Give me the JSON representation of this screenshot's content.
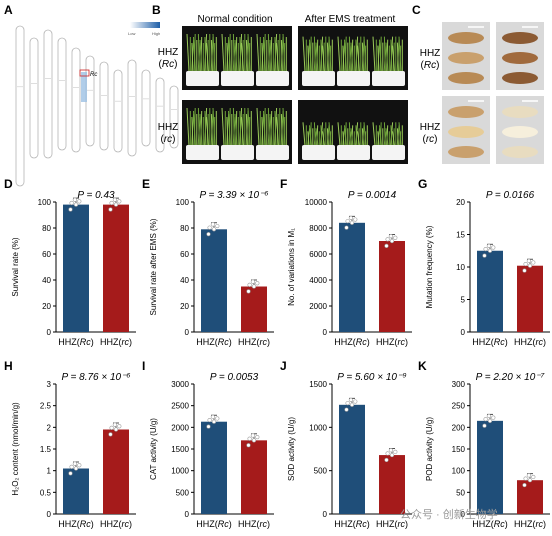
{
  "panels": {
    "A": {
      "letter": "A",
      "legend_low": "Low",
      "legend_high": "High",
      "gene_label": "Rc"
    },
    "B": {
      "letter": "B",
      "col1": "Normal condition",
      "col2": "After EMS treatment",
      "row1_line": "HHZ",
      "row1_geno": "Rc",
      "row2_line": "HHZ",
      "row2_geno": "rc"
    },
    "C": {
      "letter": "C",
      "row1_line": "HHZ",
      "row1_geno": "Rc",
      "row2_line": "HHZ",
      "row2_geno": "rc"
    }
  },
  "watermark": "公众号 · 创新生物学",
  "colors": {
    "rc_upper": "#1f4e79",
    "rc_lower": "#a51b1b"
  },
  "chart_data": [
    {
      "id": "D",
      "letter": "D",
      "type": "bar",
      "categories": [
        "HHZ(Rc)",
        "HHZ(rc)"
      ],
      "values": [
        98,
        98
      ],
      "ylabel": "Survival rate (%)",
      "ylim": [
        0,
        100
      ],
      "yticks": [
        0,
        20,
        40,
        60,
        80,
        100
      ],
      "pvalue": "P = 0.43"
    },
    {
      "id": "E",
      "letter": "E",
      "type": "bar",
      "categories": [
        "HHZ(Rc)",
        "HHZ(rc)"
      ],
      "values": [
        79,
        35
      ],
      "ylabel": "Survival rate after EMS (%)",
      "ylim": [
        0,
        100
      ],
      "yticks": [
        0,
        20,
        40,
        60,
        80,
        100
      ],
      "pvalue": "P = 3.39 × 10⁻⁶"
    },
    {
      "id": "F",
      "letter": "F",
      "type": "bar",
      "categories": [
        "HHZ(Rc)",
        "HHZ(rc)"
      ],
      "values": [
        8400,
        7000
      ],
      "ylabel": "No. of variations in M₁",
      "ylim": [
        0,
        10000
      ],
      "yticks": [
        0,
        2000,
        4000,
        6000,
        8000,
        10000
      ],
      "pvalue": "P = 0.0014"
    },
    {
      "id": "G",
      "letter": "G",
      "type": "bar",
      "categories": [
        "HHZ(Rc)",
        "HHZ(rc)"
      ],
      "values": [
        12.5,
        10.2
      ],
      "ylabel": "Mutation frequency (%)",
      "ylim": [
        0,
        20
      ],
      "yticks": [
        0,
        5,
        10,
        15,
        20
      ],
      "pvalue": "P = 0.0166"
    },
    {
      "id": "H",
      "letter": "H",
      "type": "bar",
      "categories": [
        "HHZ(Rc)",
        "HHZ(rc)"
      ],
      "values": [
        1.05,
        1.95
      ],
      "ylabel": "H₂O₂ content (nmol/min/g)",
      "ylim": [
        0,
        3.0
      ],
      "yticks": [
        0,
        0.5,
        1.0,
        1.5,
        2.0,
        2.5,
        3.0
      ],
      "pvalue": "P = 8.76 × 10⁻⁶"
    },
    {
      "id": "I",
      "letter": "I",
      "type": "bar",
      "categories": [
        "HHZ(Rc)",
        "HHZ(rc)"
      ],
      "values": [
        2130,
        1700
      ],
      "ylabel": "CAT activity (U/g)",
      "ylim": [
        0,
        3000
      ],
      "yticks": [
        0,
        500,
        1000,
        1500,
        2000,
        2500,
        3000
      ],
      "pvalue": "P = 0.0053"
    },
    {
      "id": "J",
      "letter": "J",
      "type": "bar",
      "categories": [
        "HHZ(Rc)",
        "HHZ(rc)"
      ],
      "values": [
        1260,
        680
      ],
      "ylabel": "SOD activity (U/g)",
      "ylim": [
        0,
        1500
      ],
      "yticks": [
        0,
        500,
        1000,
        1500
      ],
      "pvalue": "P = 5.60 × 10⁻⁹"
    },
    {
      "id": "K",
      "letter": "K",
      "type": "bar",
      "categories": [
        "HHZ(Rc)",
        "HHZ(rc)"
      ],
      "values": [
        215,
        78
      ],
      "ylabel": "POD activity (U/g)",
      "ylim": [
        0,
        300
      ],
      "yticks": [
        0,
        50,
        100,
        150,
        200,
        250,
        300
      ],
      "pvalue": "P = 2.20 × 10⁻⁷"
    }
  ]
}
